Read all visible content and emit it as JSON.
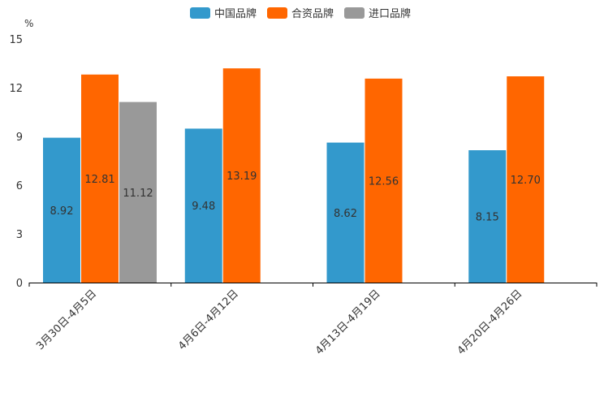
{
  "chart_data": {
    "type": "bar",
    "unit_label": "%",
    "categories": [
      "3月30日-4月5日",
      "4月6日-4月12日",
      "4月13日-4月19日",
      "4月20日-4月26日"
    ],
    "series": [
      {
        "name": "中国品牌",
        "color": "#3399cc",
        "values": [
          8.92,
          9.48,
          8.62,
          8.15
        ],
        "labels": [
          "8.92",
          "9.48",
          "8.62",
          "8.15"
        ]
      },
      {
        "name": "合资品牌",
        "color": "#ff6600",
        "values": [
          12.81,
          13.19,
          12.56,
          12.7
        ],
        "labels": [
          "12.81",
          "13.19",
          "12.56",
          "12.70"
        ]
      },
      {
        "name": "进口品牌",
        "color": "#999999",
        "values": [
          11.12,
          null,
          null,
          null
        ],
        "labels": [
          "11.12",
          null,
          null,
          null
        ]
      }
    ],
    "yticks": [
      "0",
      "3",
      "6",
      "9",
      "12",
      "15"
    ],
    "ylim": [
      0,
      15
    ],
    "legend_position": "top-center",
    "grid": false
  }
}
